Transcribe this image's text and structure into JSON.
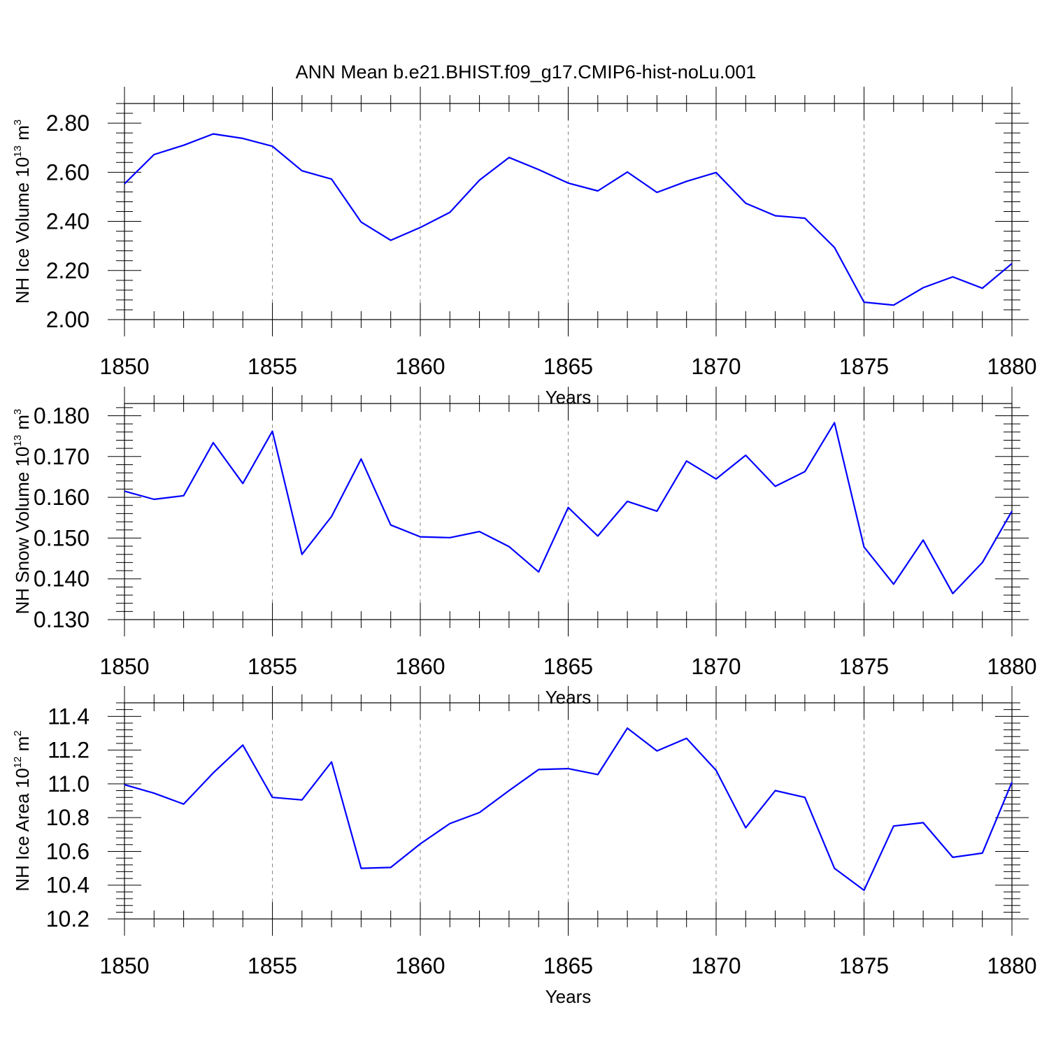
{
  "title": "ANN Mean b.e21.BHIST.f09_g17.CMIP6-hist-noLu.001",
  "line_color": "#0000ff",
  "chart_data": [
    {
      "type": "line",
      "ylabel": "NH Ice Volume 10",
      "ylabel_sup": "13",
      "ylabel_unit": " m",
      "ylabel_unit_sup": "3",
      "xlabel": "Years",
      "xlim": [
        1850,
        1880
      ],
      "ylim": [
        2.0,
        2.88
      ],
      "xticks": [
        1850,
        1855,
        1860,
        1865,
        1870,
        1875,
        1880
      ],
      "xtick_labels": [
        "1850",
        "1855",
        "1860",
        "1865",
        "1870",
        "1875",
        "1880"
      ],
      "yticks": [
        2.0,
        2.2,
        2.4,
        2.6,
        2.8
      ],
      "ytick_labels": [
        "2.00",
        "2.20",
        "2.40",
        "2.60",
        "2.80"
      ],
      "y_minor_step": 0.04,
      "grid": "vertical-dashed",
      "x": [
        1850,
        1851,
        1852,
        1853,
        1854,
        1855,
        1856,
        1857,
        1858,
        1859,
        1860,
        1861,
        1862,
        1863,
        1864,
        1865,
        1866,
        1867,
        1868,
        1869,
        1870,
        1871,
        1872,
        1873,
        1874,
        1875,
        1876,
        1877,
        1878,
        1879,
        1880
      ],
      "values": [
        2.553,
        2.672,
        2.71,
        2.756,
        2.738,
        2.706,
        2.606,
        2.572,
        2.397,
        2.323,
        2.375,
        2.437,
        2.568,
        2.66,
        2.611,
        2.556,
        2.524,
        2.601,
        2.518,
        2.563,
        2.599,
        2.474,
        2.423,
        2.413,
        2.294,
        2.071,
        2.059,
        2.13,
        2.174,
        2.128,
        2.228
      ]
    },
    {
      "type": "line",
      "ylabel": "NH Snow Volume 10",
      "ylabel_sup": "13",
      "ylabel_unit": " m",
      "ylabel_unit_sup": "3",
      "xlabel": "Years",
      "xlim": [
        1850,
        1880
      ],
      "ylim": [
        0.13,
        0.183
      ],
      "xticks": [
        1850,
        1855,
        1860,
        1865,
        1870,
        1875,
        1880
      ],
      "xtick_labels": [
        "1850",
        "1855",
        "1860",
        "1865",
        "1870",
        "1875",
        "1880"
      ],
      "yticks": [
        0.13,
        0.14,
        0.15,
        0.16,
        0.17,
        0.18
      ],
      "ytick_labels": [
        "0.130",
        "0.140",
        "0.150",
        "0.160",
        "0.170",
        "0.180"
      ],
      "y_minor_step": 0.002,
      "grid": "vertical-dashed",
      "x": [
        1850,
        1851,
        1852,
        1853,
        1854,
        1855,
        1856,
        1857,
        1858,
        1859,
        1860,
        1861,
        1862,
        1863,
        1864,
        1865,
        1866,
        1867,
        1868,
        1869,
        1870,
        1871,
        1872,
        1873,
        1874,
        1875,
        1876,
        1877,
        1878,
        1879,
        1880
      ],
      "values": [
        0.1615,
        0.1595,
        0.1604,
        0.1734,
        0.1634,
        0.1762,
        0.146,
        0.1553,
        0.1694,
        0.1532,
        0.1503,
        0.1501,
        0.1516,
        0.1479,
        0.1417,
        0.1575,
        0.1505,
        0.159,
        0.1566,
        0.1689,
        0.1645,
        0.1703,
        0.1627,
        0.1663,
        0.1783,
        0.1478,
        0.1387,
        0.1495,
        0.1364,
        0.144,
        0.1566
      ]
    },
    {
      "type": "line",
      "ylabel": "NH Ice Area 10",
      "ylabel_sup": "12",
      "ylabel_unit": " m",
      "ylabel_unit_sup": "2",
      "xlabel": "Years",
      "xlim": [
        1850,
        1880
      ],
      "ylim": [
        10.2,
        11.48
      ],
      "xticks": [
        1850,
        1855,
        1860,
        1865,
        1870,
        1875,
        1880
      ],
      "xtick_labels": [
        "1850",
        "1855",
        "1860",
        "1865",
        "1870",
        "1875",
        "1880"
      ],
      "yticks": [
        10.2,
        10.4,
        10.6,
        10.8,
        11.0,
        11.2,
        11.4
      ],
      "ytick_labels": [
        "10.2",
        "10.4",
        "10.6",
        "10.8",
        "11.0",
        "11.2",
        "11.4"
      ],
      "y_minor_step": 0.04,
      "grid": "vertical-dashed",
      "x": [
        1850,
        1851,
        1852,
        1853,
        1854,
        1855,
        1856,
        1857,
        1858,
        1859,
        1860,
        1861,
        1862,
        1863,
        1864,
        1865,
        1866,
        1867,
        1868,
        1869,
        1870,
        1871,
        1872,
        1873,
        1874,
        1875,
        1876,
        1877,
        1878,
        1879,
        1880
      ],
      "values": [
        10.995,
        10.945,
        10.88,
        11.065,
        11.23,
        10.92,
        10.905,
        11.13,
        10.5,
        10.505,
        10.645,
        10.765,
        10.83,
        10.96,
        11.085,
        11.09,
        11.055,
        11.33,
        11.195,
        11.27,
        11.08,
        10.74,
        10.96,
        10.92,
        10.5,
        10.37,
        10.75,
        10.77,
        10.565,
        10.59,
        11.01
      ]
    }
  ]
}
